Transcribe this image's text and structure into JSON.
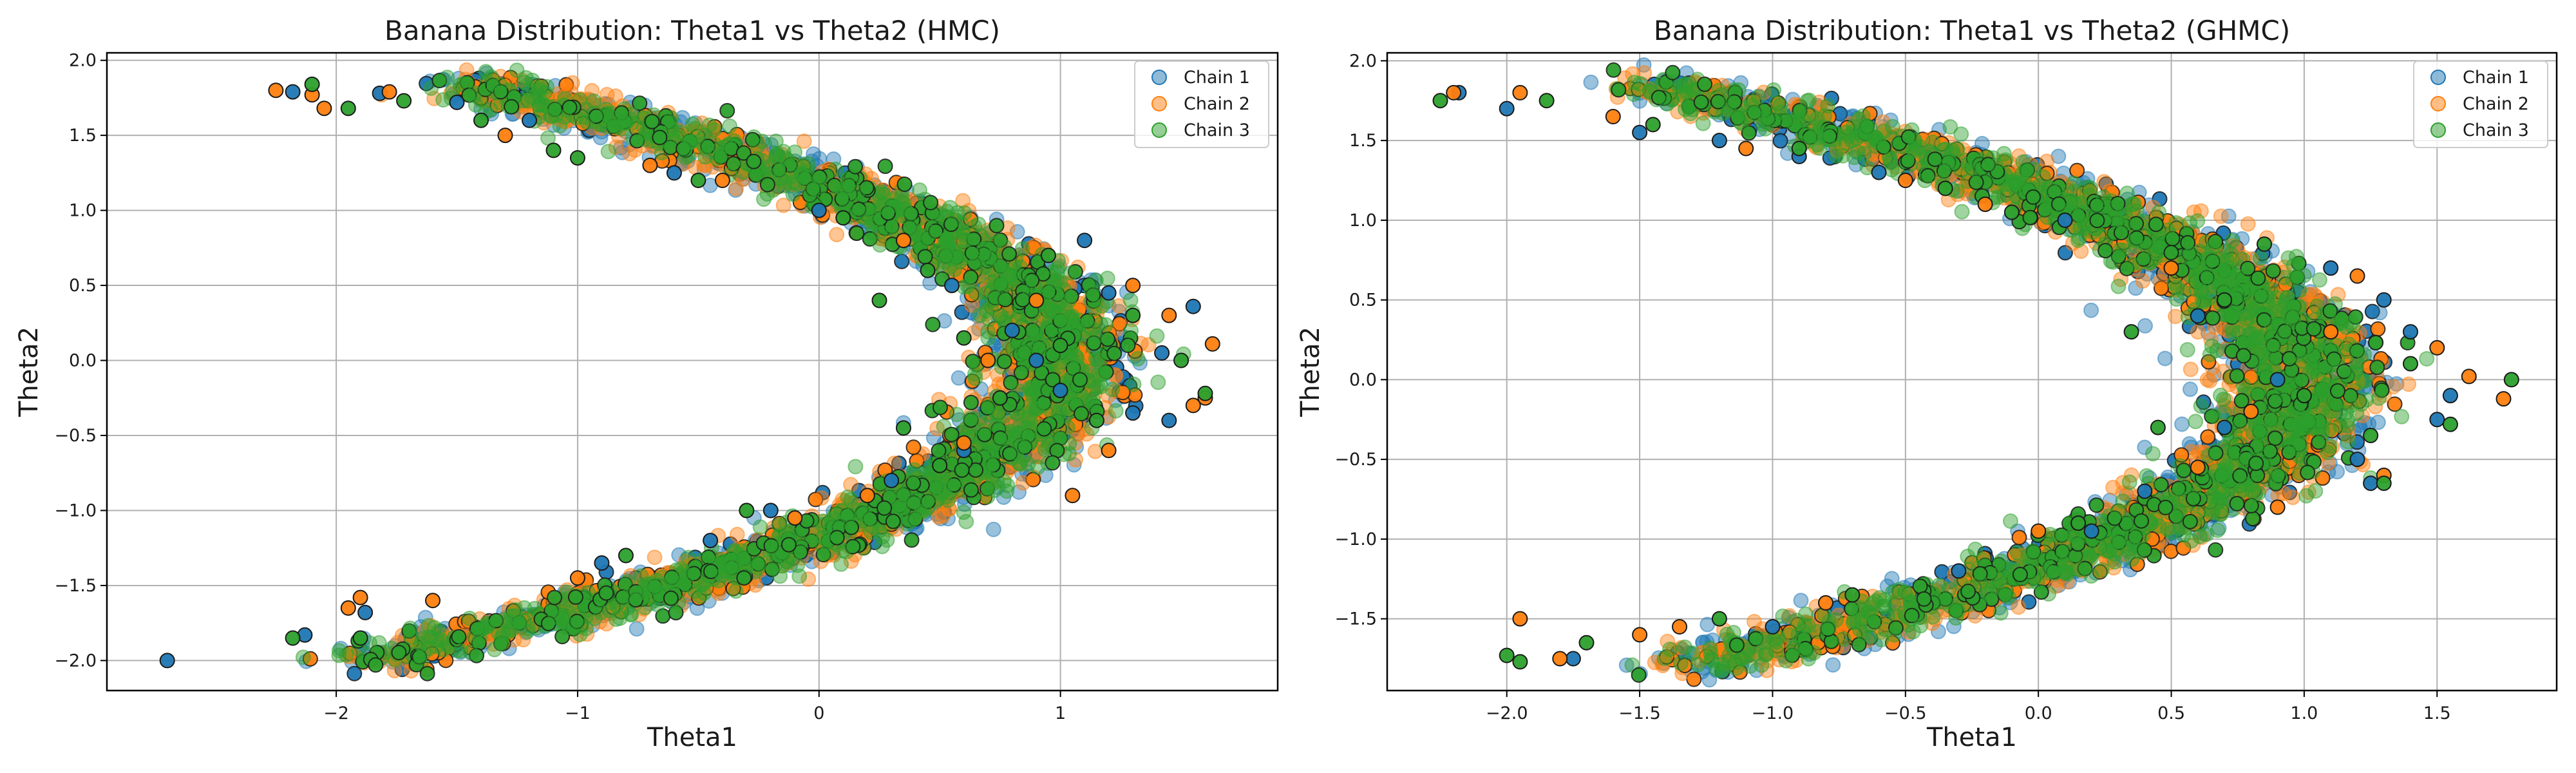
{
  "colors": {
    "chain_1": "#1f77b4",
    "chain_2": "#ff7f0e",
    "chain_3": "#2ca02c"
  },
  "chart_data": [
    {
      "type": "scatter",
      "title": "Banana Distribution: Theta1 vs Theta2 (HMC)",
      "xlabel": "Theta1",
      "ylabel": "Theta2",
      "xlim": [
        -2.95,
        1.9
      ],
      "ylim": [
        -2.2,
        2.05
      ],
      "xticks": [
        -2,
        -1,
        0,
        1
      ],
      "xtick_labels": [
        "−2",
        "−1",
        "0",
        "1"
      ],
      "yticks": [
        -2.0,
        -1.5,
        -1.0,
        -0.5,
        0.0,
        0.5,
        1.0,
        1.5,
        2.0
      ],
      "ytick_labels": [
        "−2.0",
        "−1.5",
        "−1.0",
        "−0.5",
        "0.0",
        "0.5",
        "1.0",
        "1.5",
        "2.0"
      ],
      "grid": true,
      "legend_position": "top-right",
      "distribution": "banana: theta1 ≈ 1 − 0.72·theta2², theta2 ∈ [−2.0, 1.85], band width ≈ 0.3",
      "series": [
        {
          "name": "Chain 1",
          "color": "#1f77b4",
          "points": [
            [
              -2.7,
              -2.0
            ],
            [
              -2.18,
              1.79
            ],
            [
              -2.13,
              -1.83
            ],
            [
              -1.88,
              -1.68
            ],
            [
              -1.82,
              1.78
            ],
            [
              -1.5,
              1.72
            ],
            [
              -1.2,
              1.6
            ],
            [
              -0.9,
              -1.35
            ],
            [
              -0.45,
              -1.2
            ],
            [
              0.0,
              1.0
            ],
            [
              0.3,
              -0.8
            ],
            [
              0.55,
              0.5
            ],
            [
              0.8,
              0.2
            ],
            [
              1.0,
              -0.2
            ],
            [
              1.2,
              0.45
            ],
            [
              1.3,
              -0.35
            ],
            [
              1.42,
              0.05
            ],
            [
              1.55,
              0.36
            ],
            [
              1.1,
              0.8
            ],
            [
              0.6,
              -0.6
            ],
            [
              -0.2,
              -1.0
            ],
            [
              -0.6,
              1.25
            ],
            [
              1.45,
              -0.4
            ],
            [
              0.9,
              0.0
            ]
          ]
        },
        {
          "name": "Chain 2",
          "color": "#ff7f0e",
          "points": [
            [
              -2.25,
              1.8
            ],
            [
              -2.1,
              1.77
            ],
            [
              -2.05,
              1.68
            ],
            [
              -1.78,
              1.79
            ],
            [
              -1.9,
              -1.58
            ],
            [
              -1.95,
              -1.65
            ],
            [
              -1.6,
              -1.6
            ],
            [
              -1.3,
              1.5
            ],
            [
              -1.0,
              -1.45
            ],
            [
              -0.4,
              1.2
            ],
            [
              -0.1,
              -1.05
            ],
            [
              0.35,
              0.8
            ],
            [
              0.6,
              -0.55
            ],
            [
              0.9,
              0.4
            ],
            [
              1.2,
              -0.6
            ],
            [
              1.55,
              -0.3
            ],
            [
              1.63,
              0.11
            ],
            [
              1.6,
              -0.25
            ],
            [
              1.3,
              0.5
            ],
            [
              0.7,
              0.0
            ],
            [
              1.05,
              -0.9
            ],
            [
              -0.7,
              1.3
            ],
            [
              0.2,
              -0.9
            ],
            [
              1.45,
              0.3
            ]
          ]
        },
        {
          "name": "Chain 3",
          "color": "#2ca02c",
          "points": [
            [
              -2.1,
              1.84
            ],
            [
              -2.18,
              -1.85
            ],
            [
              -1.9,
              -1.85
            ],
            [
              -1.95,
              1.68
            ],
            [
              -1.72,
              1.73
            ],
            [
              -1.4,
              1.6
            ],
            [
              -1.1,
              1.4
            ],
            [
              -0.8,
              -1.3
            ],
            [
              -0.5,
              1.2
            ],
            [
              -0.3,
              -1.0
            ],
            [
              0.1,
              0.95
            ],
            [
              0.25,
              0.4
            ],
            [
              0.45,
              0.6
            ],
            [
              0.35,
              -0.45
            ],
            [
              0.6,
              0.15
            ],
            [
              0.75,
              -0.25
            ],
            [
              1.0,
              0.1
            ],
            [
              1.15,
              -0.4
            ],
            [
              1.3,
              0.3
            ],
            [
              1.5,
              0.0
            ],
            [
              1.6,
              -0.22
            ],
            [
              0.95,
              0.7
            ],
            [
              -1.0,
              1.35
            ],
            [
              0.5,
              -0.7
            ]
          ]
        }
      ]
    },
    {
      "type": "scatter",
      "title": "Banana Distribution: Theta1 vs Theta2 (GHMC)",
      "xlabel": "Theta1",
      "ylabel": "Theta2",
      "xlim": [
        -2.45,
        1.95
      ],
      "ylim": [
        -1.95,
        2.05
      ],
      "xticks": [
        -2.0,
        -1.5,
        -1.0,
        -0.5,
        0.0,
        0.5,
        1.0,
        1.5
      ],
      "xtick_labels": [
        "−2.0",
        "−1.5",
        "−1.0",
        "−0.5",
        "0.0",
        "0.5",
        "1.0",
        "1.5"
      ],
      "yticks": [
        -1.5,
        -1.0,
        -0.5,
        0.0,
        0.5,
        1.0,
        1.5,
        2.0
      ],
      "ytick_labels": [
        "−1.5",
        "−1.0",
        "−0.5",
        "0.0",
        "0.5",
        "1.0",
        "1.5",
        "2.0"
      ],
      "grid": true,
      "legend_position": "top-right",
      "distribution": "banana: theta1 ≈ 1 − 0.72·theta2², theta2 ∈ [−1.8, 1.85], band width ≈ 0.3",
      "series": [
        {
          "name": "Chain 1",
          "color": "#1f77b4",
          "points": [
            [
              -2.18,
              1.8
            ],
            [
              -2.0,
              1.7
            ],
            [
              -1.75,
              -1.75
            ],
            [
              -1.5,
              1.55
            ],
            [
              -1.2,
              1.5
            ],
            [
              -1.0,
              -1.55
            ],
            [
              -0.6,
              1.3
            ],
            [
              -0.3,
              -1.2
            ],
            [
              0.1,
              1.0
            ],
            [
              0.4,
              -0.7
            ],
            [
              0.6,
              0.4
            ],
            [
              0.9,
              0.0
            ],
            [
              1.2,
              -0.5
            ],
            [
              1.4,
              0.3
            ],
            [
              1.55,
              -0.1
            ],
            [
              1.5,
              -0.25
            ],
            [
              1.3,
              0.5
            ],
            [
              0.7,
              -0.3
            ],
            [
              -0.9,
              1.4
            ],
            [
              1.1,
              0.7
            ],
            [
              0.2,
              -0.95
            ],
            [
              1.25,
              -0.65
            ]
          ]
        },
        {
          "name": "Chain 2",
          "color": "#ff7f0e",
          "points": [
            [
              -2.2,
              1.8
            ],
            [
              -1.95,
              1.8
            ],
            [
              -1.95,
              -1.5
            ],
            [
              -1.8,
              -1.75
            ],
            [
              -1.6,
              1.65
            ],
            [
              -1.35,
              -1.55
            ],
            [
              -1.1,
              1.45
            ],
            [
              -0.8,
              -1.4
            ],
            [
              -0.5,
              1.25
            ],
            [
              0.0,
              -0.95
            ],
            [
              0.5,
              0.7
            ],
            [
              0.8,
              -0.2
            ],
            [
              1.1,
              0.3
            ],
            [
              1.3,
              -0.6
            ],
            [
              1.62,
              0.02
            ],
            [
              1.75,
              -0.12
            ],
            [
              1.5,
              0.2
            ],
            [
              0.9,
              -0.8
            ],
            [
              -0.2,
              1.1
            ],
            [
              1.2,
              0.65
            ],
            [
              -1.5,
              -1.6
            ],
            [
              0.6,
              -0.55
            ]
          ]
        },
        {
          "name": "Chain 3",
          "color": "#2ca02c",
          "points": [
            [
              -2.25,
              1.75
            ],
            [
              -2.0,
              -1.73
            ],
            [
              -1.95,
              -1.77
            ],
            [
              -1.7,
              -1.65
            ],
            [
              -1.85,
              1.75
            ],
            [
              -1.45,
              1.6
            ],
            [
              -1.2,
              -1.5
            ],
            [
              -0.9,
              1.45
            ],
            [
              -0.7,
              -1.35
            ],
            [
              -0.35,
              1.2
            ],
            [
              0.15,
              -0.9
            ],
            [
              0.35,
              0.3
            ],
            [
              0.45,
              -0.3
            ],
            [
              0.7,
              0.5
            ],
            [
              1.0,
              -0.1
            ],
            [
              1.25,
              -0.35
            ],
            [
              1.4,
              0.1
            ],
            [
              1.55,
              -0.28
            ],
            [
              1.3,
              -0.65
            ],
            [
              1.78,
              0.0
            ],
            [
              -0.1,
              1.05
            ],
            [
              0.85,
              0.85
            ]
          ]
        }
      ]
    }
  ]
}
